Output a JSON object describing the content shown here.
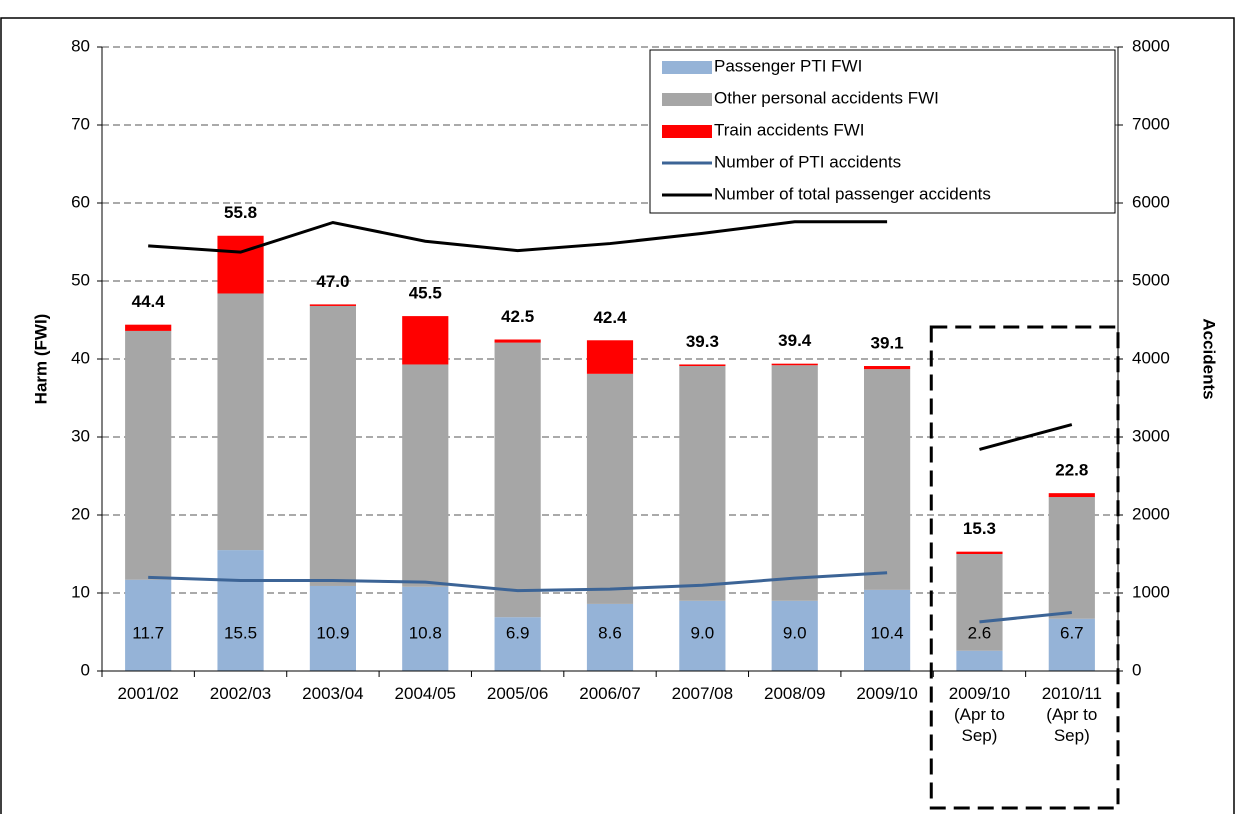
{
  "chart_data": {
    "type": "bar",
    "categories": [
      "2001/02",
      "2002/03",
      "2003/04",
      "2004/05",
      "2005/06",
      "2006/07",
      "2007/08",
      "2008/09",
      "2009/10",
      "2009/10 (Apr to Sep)",
      "2010/11 (Apr to Sep)"
    ],
    "series": [
      {
        "name": "Passenger PTI FWI",
        "kind": "bar",
        "color": "#95b3d7",
        "values": [
          11.7,
          15.5,
          10.9,
          10.8,
          6.9,
          8.6,
          9.0,
          9.0,
          10.4,
          2.6,
          6.7
        ],
        "value_labels": [
          "11.7",
          "15.5",
          "10.9",
          "10.8",
          "6.9",
          "8.6",
          "9.0",
          "9.0",
          "10.4",
          "2.6",
          "6.7"
        ]
      },
      {
        "name": "Other personal accidents FWI",
        "kind": "bar",
        "color": "#a6a6a6",
        "values": [
          31.9,
          32.9,
          35.9,
          28.5,
          35.2,
          29.5,
          30.1,
          30.2,
          28.3,
          12.4,
          15.6
        ]
      },
      {
        "name": "Train accidents FWI",
        "kind": "bar",
        "color": "#ff0000",
        "values": [
          0.8,
          7.4,
          0.2,
          6.2,
          0.4,
          4.3,
          0.2,
          0.2,
          0.4,
          0.3,
          0.5
        ]
      },
      {
        "name": "Number of PTI accidents",
        "kind": "line",
        "axis": "y2",
        "color": "#3c6496",
        "values": [
          1200,
          1160,
          1160,
          1140,
          1030,
          1050,
          1100,
          1190,
          1260,
          630,
          750
        ]
      },
      {
        "name": "Number of total passenger accidents",
        "kind": "line",
        "axis": "y2",
        "color": "#000000",
        "values": [
          5450,
          5370,
          5750,
          5510,
          5390,
          5480,
          5610,
          5760,
          5760,
          2840,
          3160
        ]
      }
    ],
    "totals": [
      44.4,
      55.8,
      47.0,
      45.5,
      42.5,
      42.4,
      39.3,
      39.4,
      39.1,
      15.3,
      22.8
    ],
    "total_labels": [
      "44.4",
      "55.8",
      "47.0",
      "45.5",
      "42.5",
      "42.4",
      "39.3",
      "39.4",
      "39.1",
      "15.3",
      "22.8"
    ],
    "boxed_categories": [
      9,
      10
    ],
    "ylabel": "Harm (FWI)",
    "y2label": "Accidents",
    "ylim": [
      0,
      80
    ],
    "yticks": [
      0,
      10,
      20,
      30,
      40,
      50,
      60,
      70,
      80
    ],
    "y2lim": [
      0,
      8000
    ],
    "y2ticks": [
      0,
      1000,
      2000,
      3000,
      4000,
      5000,
      6000,
      7000,
      8000
    ],
    "grid": true,
    "legend": "upper right"
  }
}
